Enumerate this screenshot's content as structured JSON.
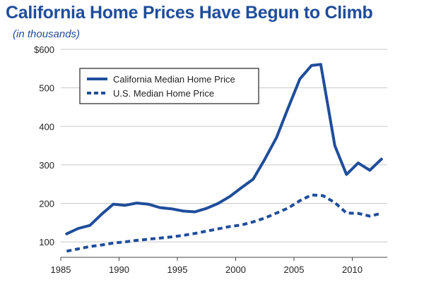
{
  "chart_data": {
    "type": "line",
    "title": "California Home Prices Have Begun to Climb",
    "subtitle": "(in thousands)",
    "ylim": [
      60,
      600
    ],
    "xlim": [
      1985,
      2013
    ],
    "ytick_labels": [
      "$600",
      "500",
      "400",
      "300",
      "200",
      "100"
    ],
    "ytick_values": [
      600,
      500,
      400,
      300,
      200,
      100
    ],
    "xtick_labels": [
      "1985",
      "1990",
      "1995",
      "2000",
      "2005",
      "2010"
    ],
    "xtick_values": [
      1985,
      1990,
      1995,
      2000,
      2005,
      2010
    ],
    "grid": "horizontal",
    "legend_position": "top-left",
    "series": [
      {
        "name": "California Median Home Price",
        "style": "solid",
        "color": "#1f4d9b",
        "x": [
          1985.5,
          1986.5,
          1987.5,
          1988.5,
          1989.5,
          1990.5,
          1991.5,
          1992.5,
          1993.5,
          1994.5,
          1995.5,
          1996.5,
          1997.5,
          1998.5,
          1999.5,
          2000.5,
          2001.5,
          2002.5,
          2003.5,
          2004.5,
          2005.5,
          2006.5,
          2007.3,
          2008.5,
          2009.5,
          2010.5,
          2011.5,
          2012.5
        ],
        "values": [
          121,
          135,
          143,
          172,
          198,
          195,
          201,
          198,
          189,
          186,
          180,
          178,
          187,
          200,
          218,
          241,
          263,
          315,
          371,
          448,
          523,
          558,
          561,
          350,
          275,
          305,
          286,
          315
        ]
      },
      {
        "name": "U.S. Median Home Price",
        "style": "dashed",
        "color": "#1f4d9b",
        "x": [
          1985.5,
          1986.5,
          1987.5,
          1988.5,
          1989.5,
          1990.5,
          1991.5,
          1992.5,
          1993.5,
          1994.5,
          1995.5,
          1996.5,
          1997.5,
          1998.5,
          1999.5,
          2000.5,
          2001.5,
          2002.5,
          2003.5,
          2004.5,
          2005.5,
          2006.5,
          2007.5,
          2008.5,
          2009.5,
          2010.5,
          2011.5,
          2012.5
        ],
        "values": [
          76,
          82,
          88,
          92,
          97,
          100,
          104,
          107,
          110,
          113,
          117,
          122,
          128,
          134,
          140,
          144,
          152,
          162,
          175,
          188,
          207,
          222,
          220,
          202,
          175,
          174,
          167,
          174
        ]
      }
    ]
  }
}
